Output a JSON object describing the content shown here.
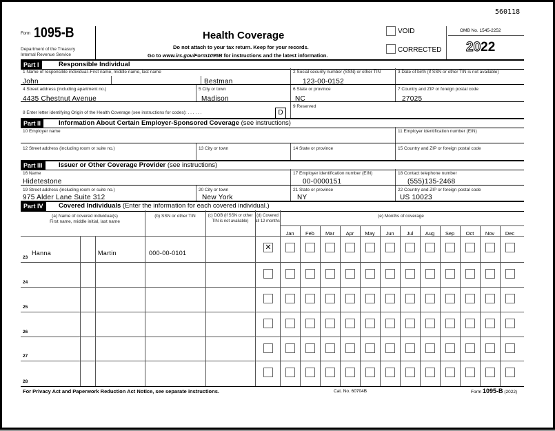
{
  "doc_id": "560118",
  "header": {
    "form_prefix": "Form",
    "form_number": "1095-B",
    "dept1": "Department of the Treasury",
    "dept2": "Internal Revenue Service",
    "title": "Health Coverage",
    "subtitle1": "Do not attach to your tax return. Keep for your records.",
    "subtitle2_pre": "Go to ",
    "subtitle2_url": "www.irs.gov/Form1095B",
    "subtitle2_post": " for instructions and the latest information.",
    "void_label": "VOID",
    "corrected_label": "CORRECTED",
    "void_checked": false,
    "corrected_checked": false,
    "omb": "OMB No. 1545-2252",
    "year_light": "20",
    "year_bold": "22"
  },
  "part1": {
    "tag": "Part I",
    "title": "Responsible Individual",
    "l1": "1  Name of responsible individual–First name, middle name, last name",
    "first": "John",
    "middle": "",
    "last": "Bestman",
    "l2": "2  Social security number (SSN) or other TIN",
    "ssn": "123-00-0152",
    "l3": "3  Date of birth (if SSN or other TIN is not available)",
    "dob": "",
    "l4": "4  Street address (including apartment no.)",
    "street": "4435 Chestnut Avenue",
    "l5": "5  City or town",
    "city": "Madison",
    "l6": "6  State or province",
    "state": "NC",
    "l7": "7  Country and ZIP or foreign postal code",
    "zip": "27025",
    "l8": "8  Enter letter identifying Origin of the Health Coverage (see instructions for codes):   .   .   .   .   .   .",
    "origin": "D",
    "l9": "9  Reserved"
  },
  "part2": {
    "tag": "Part II",
    "title": "Information About Certain Employer-Sponsored Coverage",
    "title_note": " (see instructions)",
    "l10": "10  Employer name",
    "l11": "11  Employer identification number (EIN)",
    "l12": "12  Street address (including room or suite no.)",
    "l13": "13  City or town",
    "l14": "14  State or province",
    "l15": "15  Country and ZIP or foreign postal code"
  },
  "part3": {
    "tag": "Part III",
    "title": "Issuer or Other Coverage Provider",
    "title_note": " (see instructions)",
    "l16": "16  Name",
    "name": "Hidetestone",
    "l17": "17  Employer identification number (EIN)",
    "ein": "00-0000151",
    "l18": "18  Contact telephone number",
    "phone": "(555)135-2468",
    "l19": "19  Street address (including room or suite no.)",
    "street": "975 Alder Lane Suite 312",
    "l20": "20  City or town",
    "city": "New York",
    "l21": "21  State or province",
    "state": "NY",
    "l22": "22  Country and ZIP or foreign postal code",
    "zip": "US 10023"
  },
  "part4": {
    "tag": "Part IV",
    "title": "Covered Individuals",
    "title_note": " (Enter the information for each covered individual.)",
    "col_a1": "(a) Name of covered individual(s)",
    "col_a2": "First name, middle initial, last name",
    "col_b": "(b) SSN or other TIN",
    "col_c1": "(c) DOB (if SSN or other",
    "col_c2": "TIN is not available)",
    "col_d1": "(d) Covered",
    "col_d2": "all 12 months",
    "col_e": "(e) Months of coverage",
    "months": [
      "Jan",
      "Feb",
      "Mar",
      "Apr",
      "May",
      "Jun",
      "Jul",
      "Aug",
      "Sep",
      "Oct",
      "Nov",
      "Dec"
    ],
    "rows": [
      {
        "num": "23",
        "first": "Hanna",
        "mi": "",
        "last": "Martin",
        "ssn": "000-00-0101",
        "dob": "",
        "all12": true,
        "months": [
          false,
          false,
          false,
          false,
          false,
          false,
          false,
          false,
          false,
          false,
          false,
          false
        ]
      },
      {
        "num": "24",
        "first": "",
        "mi": "",
        "last": "",
        "ssn": "",
        "dob": "",
        "all12": false,
        "months": [
          false,
          false,
          false,
          false,
          false,
          false,
          false,
          false,
          false,
          false,
          false,
          false
        ]
      },
      {
        "num": "25",
        "first": "",
        "mi": "",
        "last": "",
        "ssn": "",
        "dob": "",
        "all12": false,
        "months": [
          false,
          false,
          false,
          false,
          false,
          false,
          false,
          false,
          false,
          false,
          false,
          false
        ]
      },
      {
        "num": "26",
        "first": "",
        "mi": "",
        "last": "",
        "ssn": "",
        "dob": "",
        "all12": false,
        "months": [
          false,
          false,
          false,
          false,
          false,
          false,
          false,
          false,
          false,
          false,
          false,
          false
        ]
      },
      {
        "num": "27",
        "first": "",
        "mi": "",
        "last": "",
        "ssn": "",
        "dob": "",
        "all12": false,
        "months": [
          false,
          false,
          false,
          false,
          false,
          false,
          false,
          false,
          false,
          false,
          false,
          false
        ]
      },
      {
        "num": "28",
        "first": "",
        "mi": "",
        "last": "",
        "ssn": "",
        "dob": "",
        "all12": false,
        "months": [
          false,
          false,
          false,
          false,
          false,
          false,
          false,
          false,
          false,
          false,
          false,
          false
        ]
      }
    ]
  },
  "footer": {
    "privacy": "For Privacy Act and Paperwork Reduction Act Notice, see separate instructions.",
    "cat": "Cat. No. 60704B",
    "form_prefix": "Form",
    "form_number": "1095-B",
    "year": "(2022)"
  }
}
